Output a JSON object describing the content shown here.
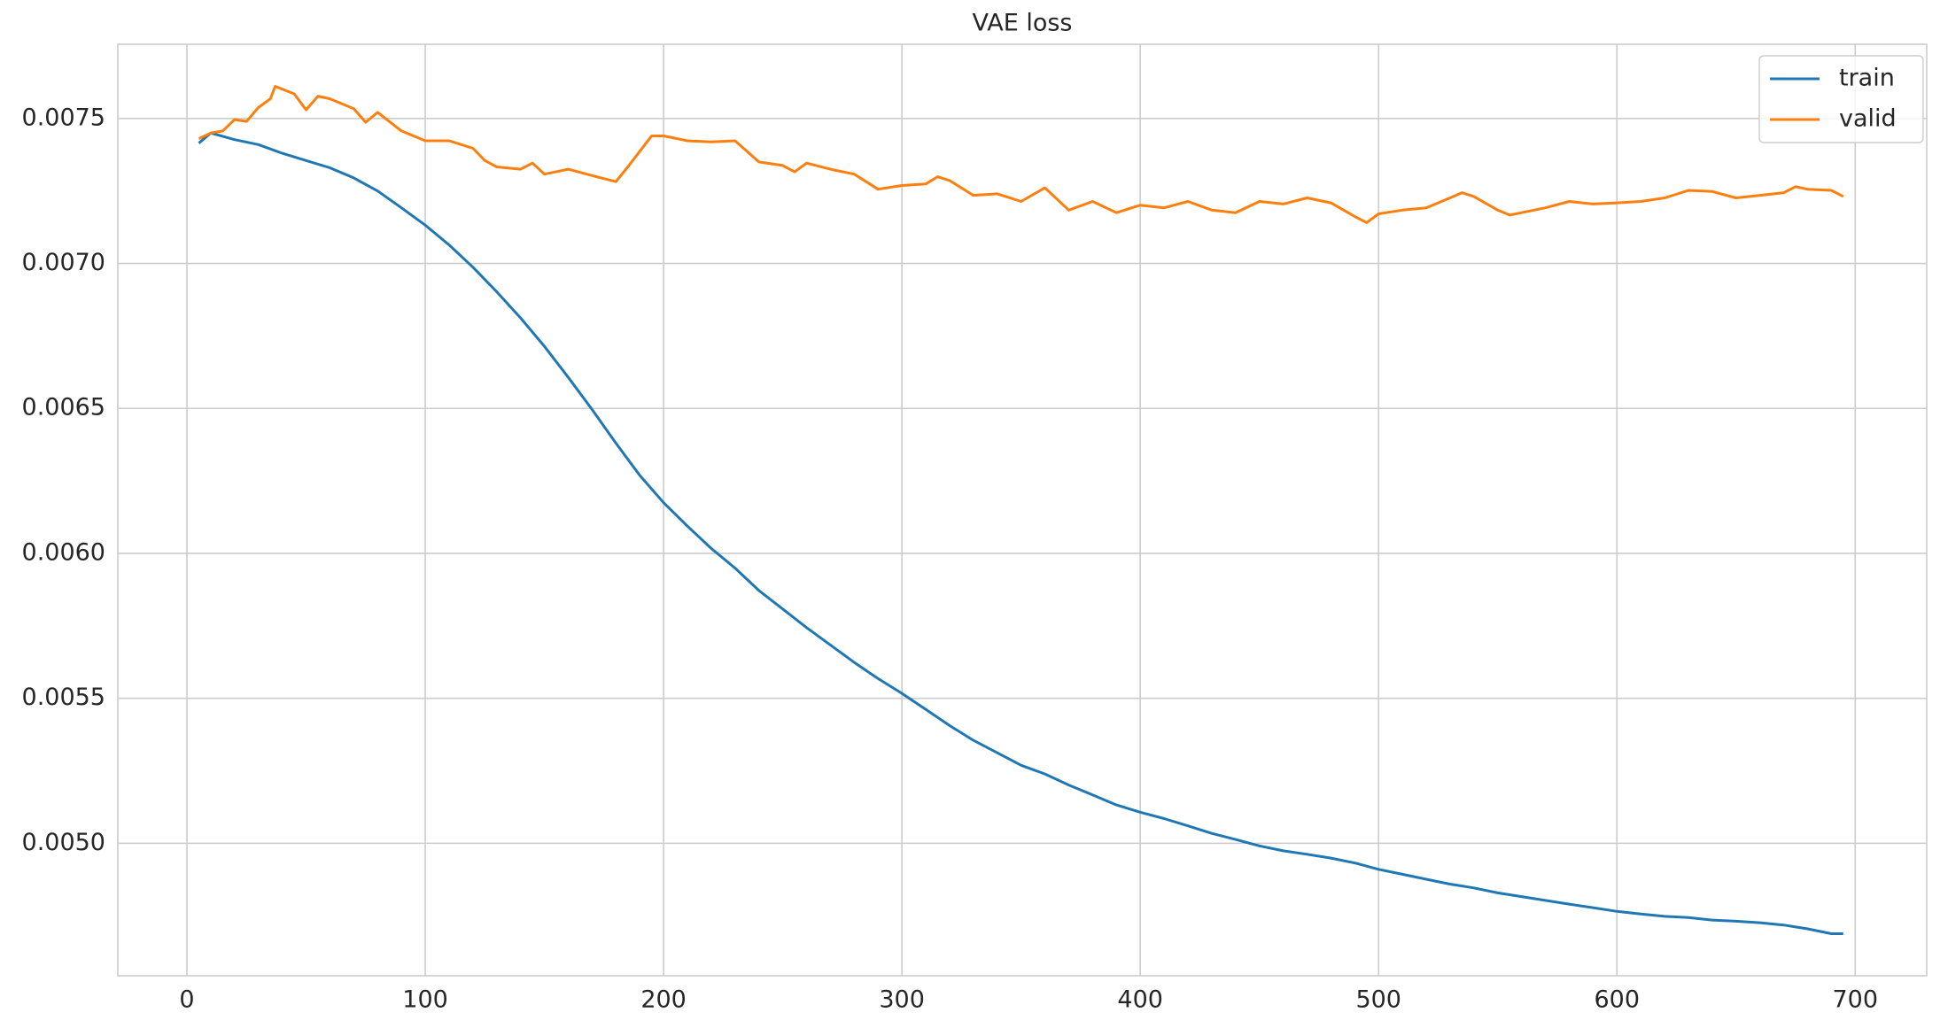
{
  "chart_data": {
    "type": "line",
    "title": "VAE loss",
    "xlim": [
      -29,
      730
    ],
    "xticks": [
      0,
      100,
      200,
      300,
      400,
      500,
      600,
      700
    ],
    "ylim": [
      0.004543,
      0.007756
    ],
    "yticks": [
      {
        "value": 0.005,
        "label": "0.0050"
      },
      0.0055,
      {
        "value": 0.006,
        "label": "0.0060"
      },
      0.0065,
      {
        "value": 0.007,
        "label": "0.0070"
      },
      0.0075
    ],
    "grid": true,
    "legend": "upper right",
    "series": [
      {
        "name": "train",
        "color": "#1f77b4",
        "x": [
          5,
          10,
          20,
          30,
          40,
          50,
          60,
          70,
          80,
          90,
          100,
          110,
          120,
          130,
          140,
          150,
          160,
          170,
          180,
          190,
          200,
          210,
          220,
          230,
          240,
          250,
          260,
          270,
          280,
          290,
          300,
          310,
          320,
          330,
          340,
          350,
          360,
          370,
          380,
          390,
          400,
          410,
          420,
          430,
          440,
          450,
          460,
          470,
          480,
          490,
          500,
          510,
          520,
          530,
          540,
          550,
          560,
          570,
          580,
          590,
          600,
          610,
          620,
          630,
          640,
          650,
          660,
          670,
          680,
          690,
          695
        ],
        "values": [
          0.007415,
          0.00745,
          0.007427,
          0.00741,
          0.00738,
          0.007355,
          0.00733,
          0.007295,
          0.00725,
          0.007192,
          0.007132,
          0.007064,
          0.006987,
          0.006902,
          0.006812,
          0.006714,
          0.006607,
          0.006496,
          0.00638,
          0.006269,
          0.006175,
          0.006094,
          0.006017,
          0.005949,
          0.005872,
          0.005808,
          0.005744,
          0.005684,
          0.005624,
          0.005568,
          0.005517,
          0.005462,
          0.005406,
          0.005355,
          0.005312,
          0.005269,
          0.005239,
          0.005201,
          0.005167,
          0.005132,
          0.005107,
          0.005085,
          0.00506,
          0.005034,
          0.005013,
          0.004991,
          0.004974,
          0.004962,
          0.004949,
          0.004932,
          0.00491,
          0.004893,
          0.004876,
          0.004859,
          0.004846,
          0.004829,
          0.004816,
          0.004803,
          0.00479,
          0.004778,
          0.004765,
          0.004756,
          0.004748,
          0.004744,
          0.004735,
          0.004731,
          0.004726,
          0.004718,
          0.004705,
          0.004688,
          0.004688
        ]
      },
      {
        "name": "valid",
        "color": "#ff7f0e",
        "x": [
          5,
          10,
          15,
          20,
          25,
          30,
          35,
          37,
          45,
          50,
          55,
          60,
          70,
          75,
          80,
          90,
          100,
          110,
          120,
          125,
          130,
          140,
          145,
          150,
          160,
          170,
          180,
          185,
          195,
          200,
          210,
          220,
          230,
          240,
          250,
          255,
          260,
          270,
          280,
          290,
          300,
          310,
          315,
          320,
          330,
          340,
          350,
          360,
          370,
          380,
          390,
          400,
          410,
          420,
          430,
          440,
          450,
          460,
          470,
          480,
          490,
          495,
          500,
          510,
          520,
          530,
          535,
          540,
          550,
          555,
          560,
          570,
          580,
          590,
          600,
          610,
          620,
          630,
          640,
          650,
          660,
          670,
          675,
          680,
          690,
          695
        ],
        "values": [
          0.00743,
          0.00745,
          0.007457,
          0.007496,
          0.00749,
          0.007538,
          0.007568,
          0.007611,
          0.007585,
          0.00753,
          0.007577,
          0.007568,
          0.007534,
          0.007487,
          0.007521,
          0.007457,
          0.007423,
          0.007423,
          0.007397,
          0.007355,
          0.007333,
          0.007325,
          0.007346,
          0.007308,
          0.007325,
          0.007303,
          0.007282,
          0.007333,
          0.00744,
          0.00744,
          0.007423,
          0.007419,
          0.007423,
          0.00735,
          0.007338,
          0.007316,
          0.007346,
          0.007325,
          0.007308,
          0.007256,
          0.007269,
          0.007274,
          0.007299,
          0.007286,
          0.007235,
          0.00724,
          0.007214,
          0.007261,
          0.007184,
          0.007214,
          0.007175,
          0.007201,
          0.007192,
          0.007214,
          0.007184,
          0.007175,
          0.007214,
          0.007205,
          0.007226,
          0.007209,
          0.007162,
          0.007141,
          0.007171,
          0.007184,
          0.007192,
          0.007226,
          0.007244,
          0.007231,
          0.007184,
          0.007167,
          0.007175,
          0.007192,
          0.007214,
          0.007205,
          0.007209,
          0.007214,
          0.007226,
          0.007252,
          0.007248,
          0.007226,
          0.007235,
          0.007244,
          0.007265,
          0.007256,
          0.007252,
          0.007231
        ]
      }
    ]
  }
}
